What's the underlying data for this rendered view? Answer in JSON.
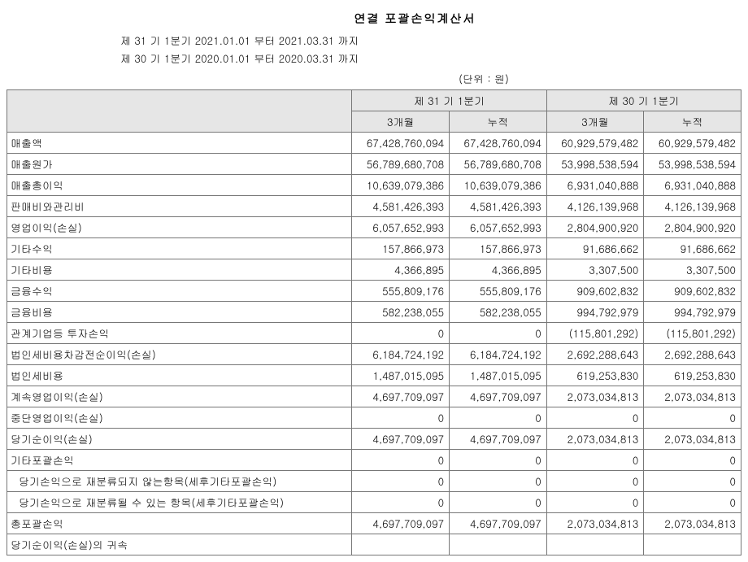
{
  "title": "연결 포괄손익계산서",
  "period1": "제 31 기 1분기 2021.01.01 부터 2021.03.31 까지",
  "period2": "제 30 기 1분기 2020.01.01 부터 2020.03.31 까지",
  "unit": "(단위 : 원)",
  "colgroup_header1": "제 31 기 1분기",
  "colgroup_header2": "제 30 기 1분기",
  "sub_h1": "3개월",
  "sub_h2": "누적",
  "sub_h3": "3개월",
  "sub_h4": "누적",
  "rows": [
    {
      "label": "매출액",
      "v1": "67,428,760,094",
      "v2": "67,428,760,094",
      "v3": "60,929,579,482",
      "v4": "60,929,579,482",
      "indent": false
    },
    {
      "label": "매출원가",
      "v1": "56,789,680,708",
      "v2": "56,789,680,708",
      "v3": "53,998,538,594",
      "v4": "53,998,538,594",
      "indent": false
    },
    {
      "label": "매출총이익",
      "v1": "10,639,079,386",
      "v2": "10,639,079,386",
      "v3": "6,931,040,888",
      "v4": "6,931,040,888",
      "indent": false
    },
    {
      "label": "판매비와관리비",
      "v1": "4,581,426,393",
      "v2": "4,581,426,393",
      "v3": "4,126,139,968",
      "v4": "4,126,139,968",
      "indent": false
    },
    {
      "label": "영업이익(손실)",
      "v1": "6,057,652,993",
      "v2": "6,057,652,993",
      "v3": "2,804,900,920",
      "v4": "2,804,900,920",
      "indent": false
    },
    {
      "label": "기타수익",
      "v1": "157,866,973",
      "v2": "157,866,973",
      "v3": "91,686,662",
      "v4": "91,686,662",
      "indent": false
    },
    {
      "label": "기타비용",
      "v1": "4,366,895",
      "v2": "4,366,895",
      "v3": "3,307,500",
      "v4": "3,307,500",
      "indent": false
    },
    {
      "label": "금융수익",
      "v1": "555,809,176",
      "v2": "555,809,176",
      "v3": "909,602,832",
      "v4": "909,602,832",
      "indent": false
    },
    {
      "label": "금융비용",
      "v1": "582,238,055",
      "v2": "582,238,055",
      "v3": "994,792,979",
      "v4": "994,792,979",
      "indent": false
    },
    {
      "label": "관계기업등 투자손익",
      "v1": "0",
      "v2": "0",
      "v3": "(115,801,292)",
      "v4": "(115,801,292)",
      "indent": false
    },
    {
      "label": "법인세비용차감전순이익(손실)",
      "v1": "6,184,724,192",
      "v2": "6,184,724,192",
      "v3": "2,692,288,643",
      "v4": "2,692,288,643",
      "indent": false
    },
    {
      "label": "법인세비용",
      "v1": "1,487,015,095",
      "v2": "1,487,015,095",
      "v3": "619,253,830",
      "v4": "619,253,830",
      "indent": false
    },
    {
      "label": "계속영업이익(손실)",
      "v1": "4,697,709,097",
      "v2": "4,697,709,097",
      "v3": "2,073,034,813",
      "v4": "2,073,034,813",
      "indent": false
    },
    {
      "label": "중단영업이익(손실)",
      "v1": "0",
      "v2": "0",
      "v3": "0",
      "v4": "0",
      "indent": false
    },
    {
      "label": "당기순이익(손실)",
      "v1": "4,697,709,097",
      "v2": "4,697,709,097",
      "v3": "2,073,034,813",
      "v4": "2,073,034,813",
      "indent": false
    },
    {
      "label": "기타포괄손익",
      "v1": "0",
      "v2": "0",
      "v3": "0",
      "v4": "0",
      "indent": false
    },
    {
      "label": "당기손익으로 재분류되지 않는항목(세후기타포괄손익)",
      "v1": "0",
      "v2": "0",
      "v3": "0",
      "v4": "0",
      "indent": true
    },
    {
      "label": "당기손익으로 재분류될 수 있는 항목(세후기타포괄손익)",
      "v1": "0",
      "v2": "0",
      "v3": "0",
      "v4": "0",
      "indent": true
    },
    {
      "label": "총포괄손익",
      "v1": "4,697,709,097",
      "v2": "4,697,709,097",
      "v3": "2,073,034,813",
      "v4": "2,073,034,813",
      "indent": false
    },
    {
      "label": "당기순이익(손실)의 귀속",
      "v1": "",
      "v2": "",
      "v3": "",
      "v4": "",
      "indent": false
    }
  ]
}
